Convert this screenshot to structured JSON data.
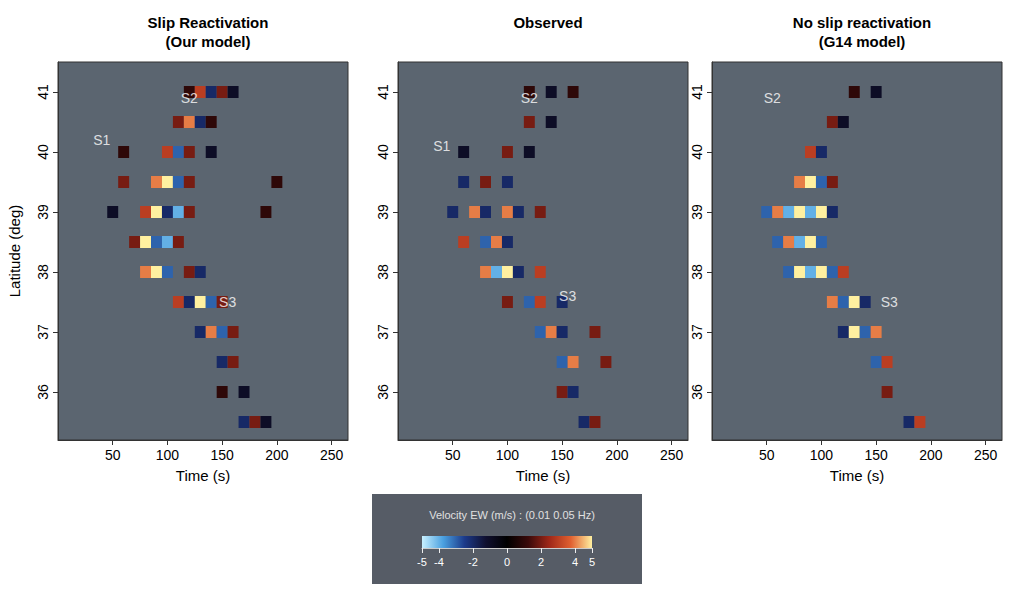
{
  "chart_data": [
    {
      "type": "heatmap",
      "title": "Slip Reactivation (Our model)",
      "x_label": "Time (s)",
      "y_label": "Latitude (deg)",
      "xlim": [
        0,
        265
      ],
      "ylim": [
        35.2,
        41.5
      ],
      "xticks": [
        50,
        100,
        150,
        200,
        250
      ],
      "yticks": [
        36,
        37,
        38,
        39,
        40,
        41
      ],
      "cell_width": 10,
      "cell_height": 0.2,
      "cells": [
        [
          120,
          41.0,
          1
        ],
        [
          130,
          41.0,
          3
        ],
        [
          140,
          41.0,
          -2
        ],
        [
          150,
          41.0,
          2
        ],
        [
          160,
          41.0,
          -1
        ],
        [
          110,
          40.5,
          2
        ],
        [
          120,
          40.5,
          4
        ],
        [
          130,
          40.5,
          -2
        ],
        [
          140,
          40.5,
          1
        ],
        [
          60,
          40.0,
          1
        ],
        [
          100,
          40.0,
          3
        ],
        [
          110,
          40.0,
          -3
        ],
        [
          120,
          40.0,
          2
        ],
        [
          140,
          40.0,
          -1
        ],
        [
          60,
          39.5,
          2
        ],
        [
          90,
          39.5,
          4
        ],
        [
          100,
          39.5,
          5
        ],
        [
          110,
          39.5,
          -3
        ],
        [
          120,
          39.5,
          2
        ],
        [
          200,
          39.5,
          1
        ],
        [
          50,
          39.0,
          -1
        ],
        [
          80,
          39.0,
          3
        ],
        [
          90,
          39.0,
          5
        ],
        [
          100,
          39.0,
          -2
        ],
        [
          110,
          39.0,
          -4
        ],
        [
          120,
          39.0,
          2
        ],
        [
          190,
          39.0,
          1
        ],
        [
          70,
          38.5,
          2
        ],
        [
          80,
          38.5,
          5
        ],
        [
          90,
          38.5,
          -3
        ],
        [
          100,
          38.5,
          -4
        ],
        [
          110,
          38.5,
          2
        ],
        [
          80,
          38.0,
          4
        ],
        [
          90,
          38.0,
          5
        ],
        [
          100,
          38.0,
          -3
        ],
        [
          120,
          38.0,
          2
        ],
        [
          130,
          38.0,
          -2
        ],
        [
          110,
          37.5,
          3
        ],
        [
          120,
          37.5,
          -2
        ],
        [
          130,
          37.5,
          5
        ],
        [
          140,
          37.5,
          -3
        ],
        [
          150,
          37.5,
          2
        ],
        [
          130,
          37.0,
          -2
        ],
        [
          140,
          37.0,
          4
        ],
        [
          150,
          37.0,
          -3
        ],
        [
          160,
          37.0,
          2
        ],
        [
          150,
          36.5,
          -2
        ],
        [
          160,
          36.5,
          2
        ],
        [
          150,
          36.0,
          1
        ],
        [
          170,
          36.0,
          -1
        ],
        [
          170,
          35.5,
          -2
        ],
        [
          180,
          35.5,
          2
        ],
        [
          190,
          35.5,
          -1
        ]
      ],
      "annotations": [
        {
          "text": "S1",
          "x": 40,
          "y": 40.2
        },
        {
          "text": "S2",
          "x": 120,
          "y": 40.9
        },
        {
          "text": "S3",
          "x": 155,
          "y": 37.5
        }
      ]
    },
    {
      "type": "heatmap",
      "title": "Observed",
      "x_label": "Time (s)",
      "xlim": [
        0,
        265
      ],
      "ylim": [
        35.2,
        41.5
      ],
      "xticks": [
        50,
        100,
        150,
        200,
        250
      ],
      "yticks": [
        36,
        37,
        38,
        39,
        40,
        41
      ],
      "cell_width": 10,
      "cell_height": 0.2,
      "cells": [
        [
          120,
          41.0,
          1
        ],
        [
          140,
          41.0,
          -1
        ],
        [
          160,
          41.0,
          1
        ],
        [
          120,
          40.5,
          2
        ],
        [
          140,
          40.5,
          -1
        ],
        [
          60,
          40.0,
          -1
        ],
        [
          100,
          40.0,
          2
        ],
        [
          120,
          40.0,
          -1
        ],
        [
          60,
          39.5,
          -2
        ],
        [
          80,
          39.5,
          2
        ],
        [
          100,
          39.5,
          -2
        ],
        [
          50,
          39.0,
          -2
        ],
        [
          70,
          39.0,
          4
        ],
        [
          80,
          39.0,
          -2
        ],
        [
          100,
          39.0,
          4
        ],
        [
          110,
          39.0,
          -2
        ],
        [
          130,
          39.0,
          2
        ],
        [
          60,
          38.5,
          3
        ],
        [
          80,
          38.5,
          -3
        ],
        [
          90,
          38.5,
          4
        ],
        [
          100,
          38.5,
          -2
        ],
        [
          80,
          38.0,
          4
        ],
        [
          90,
          38.0,
          -4
        ],
        [
          100,
          38.0,
          5
        ],
        [
          110,
          38.0,
          -2
        ],
        [
          130,
          38.0,
          3
        ],
        [
          100,
          37.5,
          2
        ],
        [
          120,
          37.5,
          -3
        ],
        [
          130,
          37.5,
          3
        ],
        [
          150,
          37.5,
          -2
        ],
        [
          130,
          37.0,
          -3
        ],
        [
          140,
          37.0,
          4
        ],
        [
          150,
          37.0,
          -2
        ],
        [
          180,
          37.0,
          2
        ],
        [
          150,
          36.5,
          -3
        ],
        [
          160,
          36.5,
          4
        ],
        [
          190,
          36.5,
          2
        ],
        [
          150,
          36.0,
          2
        ],
        [
          160,
          36.0,
          -2
        ],
        [
          170,
          35.5,
          -2
        ],
        [
          180,
          35.5,
          2
        ]
      ],
      "annotations": [
        {
          "text": "S1",
          "x": 40,
          "y": 40.1
        },
        {
          "text": "S2",
          "x": 120,
          "y": 40.9
        },
        {
          "text": "S3",
          "x": 155,
          "y": 37.6
        }
      ]
    },
    {
      "type": "heatmap",
      "title": "No slip reactivation (G14 model)",
      "x_label": "Time (s)",
      "xlim": [
        0,
        265
      ],
      "ylim": [
        35.2,
        41.5
      ],
      "xticks": [
        50,
        100,
        150,
        200,
        250
      ],
      "yticks": [
        36,
        37,
        38,
        39,
        40,
        41
      ],
      "cell_width": 10,
      "cell_height": 0.2,
      "cells": [
        [
          130,
          41.0,
          1
        ],
        [
          150,
          41.0,
          -1
        ],
        [
          110,
          40.5,
          2
        ],
        [
          120,
          40.5,
          -1
        ],
        [
          90,
          40.0,
          3
        ],
        [
          100,
          40.0,
          -2
        ],
        [
          80,
          39.5,
          4
        ],
        [
          90,
          39.5,
          5
        ],
        [
          100,
          39.5,
          -3
        ],
        [
          110,
          39.5,
          2
        ],
        [
          50,
          39.0,
          -3
        ],
        [
          60,
          39.0,
          4
        ],
        [
          70,
          39.0,
          -4
        ],
        [
          80,
          39.0,
          5
        ],
        [
          90,
          39.0,
          -4
        ],
        [
          100,
          39.0,
          5
        ],
        [
          110,
          39.0,
          -2
        ],
        [
          60,
          38.5,
          -3
        ],
        [
          70,
          38.5,
          4
        ],
        [
          80,
          38.5,
          -4
        ],
        [
          90,
          38.5,
          5
        ],
        [
          100,
          38.5,
          -3
        ],
        [
          70,
          38.0,
          -3
        ],
        [
          80,
          38.0,
          5
        ],
        [
          90,
          38.0,
          -4
        ],
        [
          100,
          38.0,
          5
        ],
        [
          110,
          38.0,
          -3
        ],
        [
          120,
          38.0,
          3
        ],
        [
          110,
          37.5,
          4
        ],
        [
          120,
          37.5,
          -3
        ],
        [
          130,
          37.5,
          5
        ],
        [
          140,
          37.5,
          -2
        ],
        [
          120,
          37.0,
          -2
        ],
        [
          130,
          37.0,
          5
        ],
        [
          140,
          37.0,
          -3
        ],
        [
          150,
          37.0,
          4
        ],
        [
          150,
          36.5,
          -3
        ],
        [
          160,
          36.5,
          3
        ],
        [
          160,
          36.0,
          2
        ],
        [
          180,
          35.5,
          -2
        ],
        [
          190,
          35.5,
          3
        ]
      ],
      "annotations": [
        {
          "text": "S2",
          "x": 55,
          "y": 40.9
        },
        {
          "text": "S3",
          "x": 162,
          "y": 37.5
        }
      ]
    }
  ],
  "colorbar": {
    "title": "Velocity EW (m/s) : (0.01 0.05 Hz)",
    "range": [
      -5,
      5
    ],
    "ticks": [
      -5,
      -4,
      -2,
      0,
      2,
      4,
      5
    ],
    "colors": [
      "#c8f0ff",
      "#4aa0e0",
      "#1c3a8a",
      "#101030",
      "#000000",
      "#3a0a0a",
      "#a02818",
      "#e06030",
      "#fff0a0"
    ]
  }
}
